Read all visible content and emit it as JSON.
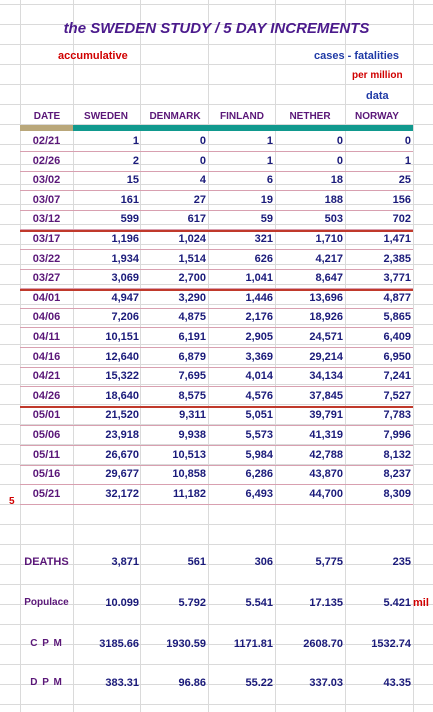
{
  "title": "the SWEDEN STUDY / 5 DAY INCREMENTS",
  "subtitle_left": "accumulative",
  "subtitle_right": "cases - fatalities",
  "per_million": "per million",
  "data_label": "data",
  "columns": [
    "DATE",
    "SWEDEN",
    "DENMARK",
    "FINLAND",
    "NETHER",
    "NORWAY"
  ],
  "rows": [
    {
      "date": "02/21",
      "values": [
        "1",
        "0",
        "1",
        "0",
        "0"
      ]
    },
    {
      "date": "02/26",
      "values": [
        "2",
        "0",
        "1",
        "0",
        "1"
      ]
    },
    {
      "date": "03/02",
      "values": [
        "15",
        "4",
        "6",
        "18",
        "25"
      ]
    },
    {
      "date": "03/07",
      "values": [
        "161",
        "27",
        "19",
        "188",
        "156"
      ]
    },
    {
      "date": "03/12",
      "values": [
        "599",
        "617",
        "59",
        "503",
        "702"
      ]
    },
    {
      "date": "03/17",
      "values": [
        "1,196",
        "1,024",
        "321",
        "1,710",
        "1,471"
      ]
    },
    {
      "date": "03/22",
      "values": [
        "1,934",
        "1,514",
        "626",
        "4,217",
        "2,385"
      ]
    },
    {
      "date": "03/27",
      "values": [
        "3,069",
        "2,700",
        "1,041",
        "8,647",
        "3,771"
      ]
    },
    {
      "date": "04/01",
      "values": [
        "4,947",
        "3,290",
        "1,446",
        "13,696",
        "4,877"
      ]
    },
    {
      "date": "04/06",
      "values": [
        "7,206",
        "4,875",
        "2,176",
        "18,926",
        "5,865"
      ]
    },
    {
      "date": "04/11",
      "values": [
        "10,151",
        "6,191",
        "2,905",
        "24,571",
        "6,409"
      ]
    },
    {
      "date": "04/16",
      "values": [
        "12,640",
        "6,879",
        "3,369",
        "29,214",
        "6,950"
      ]
    },
    {
      "date": "04/21",
      "values": [
        "15,322",
        "7,695",
        "4,014",
        "34,134",
        "7,241"
      ]
    },
    {
      "date": "04/26",
      "values": [
        "18,640",
        "8,575",
        "4,576",
        "37,845",
        "7,527"
      ]
    },
    {
      "date": "05/01",
      "values": [
        "21,520",
        "9,311",
        "5,051",
        "39,791",
        "7,783"
      ]
    },
    {
      "date": "05/06",
      "values": [
        "23,918",
        "9,938",
        "5,573",
        "41,319",
        "7,996"
      ]
    },
    {
      "date": "05/11",
      "values": [
        "26,670",
        "10,513",
        "5,984",
        "42,788",
        "8,132"
      ]
    },
    {
      "date": "05/16",
      "values": [
        "29,677",
        "10,858",
        "6,286",
        "43,870",
        "8,237"
      ]
    },
    {
      "date": "05/21",
      "values": [
        "32,172",
        "11,182",
        "6,493",
        "44,700",
        "8,309"
      ]
    }
  ],
  "row_marker": "5",
  "summary": [
    {
      "label": "DEATHS",
      "values": [
        "3,871",
        "561",
        "306",
        "5,775",
        "235"
      ],
      "suffix": ""
    },
    {
      "label": "Populace",
      "values": [
        "10.099",
        "5.792",
        "5.541",
        "17.135",
        "5.421"
      ],
      "suffix": "mil"
    },
    {
      "label": "C P M",
      "values": [
        "3185.66",
        "1930.59",
        "1171.81",
        "2608.70",
        "1532.74"
      ],
      "suffix": ""
    },
    {
      "label": "D P M",
      "values": [
        "383.31",
        "96.86",
        "55.22",
        "337.03",
        "43.35"
      ],
      "suffix": ""
    }
  ],
  "colors": {
    "title": "#4b1a8c",
    "accent_teal": "#11998e",
    "header_tan": "#b9a77a",
    "red": "#d00000",
    "blue": "#1f3aa6"
  }
}
